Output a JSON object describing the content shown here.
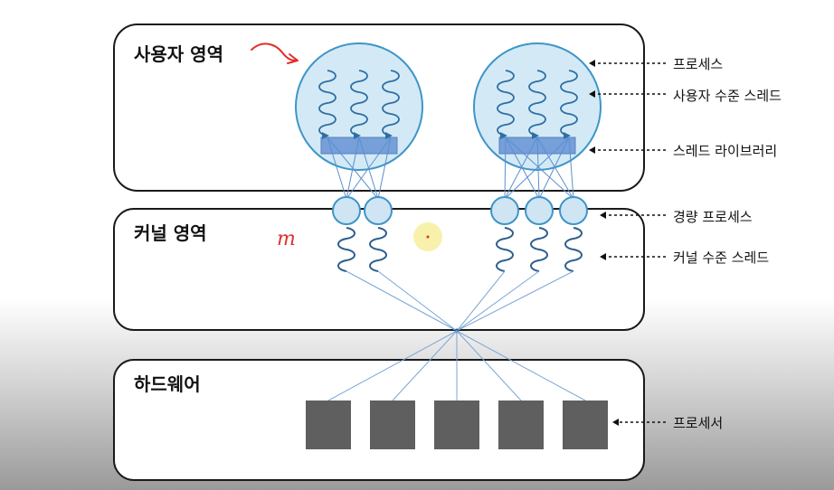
{
  "regions": {
    "user_space": "사용자 영역",
    "kernel_space": "커널 영역",
    "hardware": "하드웨어"
  },
  "callouts": {
    "process": "프로세스",
    "user_threads": "사용자 수준 스레드",
    "thread_library": "스레드 라이브러리",
    "lightweight_process": "경량 프로세스",
    "kernel_threads": "커널 수준 스레드",
    "processor": "프로세서"
  },
  "annotation_mark": "m",
  "colors": {
    "box_stroke": "#1a1a1a",
    "process_fill": "#d3eaf6",
    "process_stroke": "#3e95c8",
    "thread_line": "#2f6fa3",
    "library_fill": "#6e97d6",
    "lwp_fill": "#cfe5f3",
    "processor_fill": "#5f5f5f",
    "pen_red": "#e0302b",
    "highlight": "#f7ef9c"
  },
  "icons": {
    "callout_arrow": "dashed-arrow-left-icon",
    "pen_arrow": "curved-arrow-icon",
    "cursor_highlight": "cursor-highlight-icon"
  },
  "counts": {
    "processes": 2,
    "threads_per_process": 3,
    "lightweight_processes": [
      2,
      3
    ],
    "processors": 5
  }
}
